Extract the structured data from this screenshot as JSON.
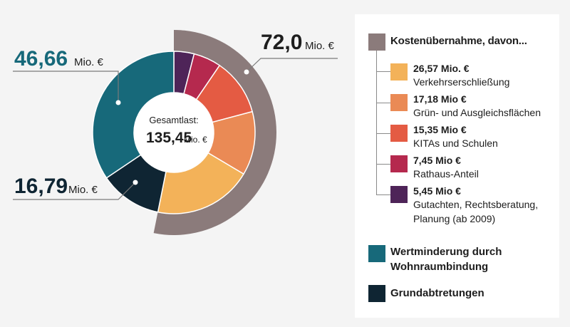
{
  "chart_data": {
    "type": "donut",
    "center": {
      "label": "Gesamtlast:",
      "value": "135,45",
      "unit": "Mio. €"
    },
    "inner_ring": [
      {
        "label": "Verkehrserschließung",
        "value": 26.57,
        "value_text": "26,57 Mio. €",
        "color": "#f3b259"
      },
      {
        "label": "Grün- und Ausgleichsflächen",
        "value": 17.18,
        "value_text": "17,18 Mio €",
        "color": "#ea8a55"
      },
      {
        "label": "KITAs und Schulen",
        "value": 15.35,
        "value_text": "15,35 Mio €",
        "color": "#e45b43"
      },
      {
        "label": "Rathaus-Anteil",
        "value": 7.45,
        "value_text": "7,45 Mio €",
        "color": "#b5294e"
      },
      {
        "label": "Gutachten, Rechtsberatung, Planung (ab 2009)",
        "value": 5.45,
        "value_text": "5,45 Mio €",
        "color": "#4e2458"
      },
      {
        "label": "Wertminderung durch Wohnraumbindung",
        "value": 46.66,
        "color": "#17697a"
      },
      {
        "label": "Grundabtretungen",
        "value": 16.79,
        "color": "#0f2533"
      }
    ],
    "outer_ring": {
      "label": "Kostenübernahme, davon...",
      "value": 72.0,
      "color": "#8b7b7b"
    },
    "callouts": [
      {
        "num": "72,0",
        "unit": "Mio. €",
        "color": "#1d1d1d"
      },
      {
        "num": "46,66",
        "unit": "Mio. €",
        "color": "#17697a"
      },
      {
        "num": "16,79",
        "unit": "Mio. €",
        "color": "#0f2533"
      }
    ]
  },
  "legend": {
    "title": "Kostenübernahme, davon...",
    "items": [
      {
        "value": "26,57 Mio. €",
        "desc": [
          "Verkehrserschließung"
        ]
      },
      {
        "value": "17,18 Mio €",
        "desc": [
          "Grün- und Ausgleichsflächen"
        ]
      },
      {
        "value": "15,35 Mio €",
        "desc": [
          "KITAs und Schulen"
        ]
      },
      {
        "value": "7,45 Mio €",
        "desc": [
          "Rathaus-Anteil"
        ]
      },
      {
        "value": "5,45 Mio €",
        "desc": [
          "Gutachten, Rechtsberatung,",
          "Planung (ab 2009)"
        ]
      }
    ],
    "main_items": [
      {
        "label": [
          "Wertminderung durch",
          "Wohnraumbindung"
        ]
      },
      {
        "label": [
          "Grundabtretungen"
        ]
      }
    ]
  }
}
